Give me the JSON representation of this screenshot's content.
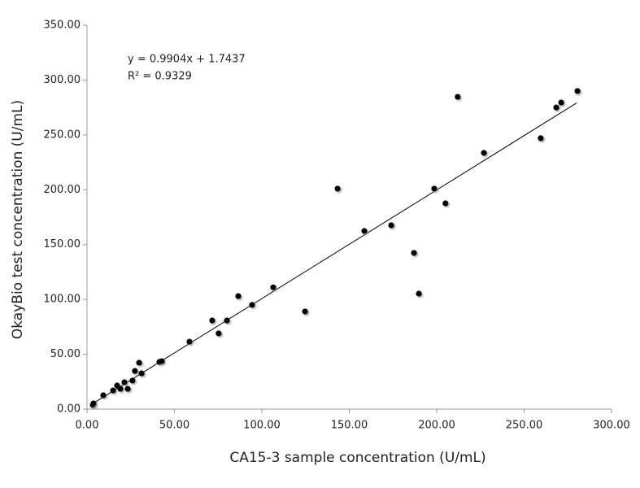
{
  "chart_data": {
    "type": "scatter",
    "xlabel": "CA15-3  sample concentration (U/mL)",
    "ylabel": "OkayBio test concentration (U/mL)",
    "annotations": [
      "y = 0.9904x + 1.7437",
      "R² = 0.9329"
    ],
    "trendline": {
      "slope": 0.9904,
      "intercept": 1.7437,
      "xlim": [
        3,
        280
      ]
    },
    "xlim": [
      0,
      300
    ],
    "ylim": [
      0,
      350
    ],
    "xticks": [
      {
        "value": 0,
        "label": "0.00"
      },
      {
        "value": 50,
        "label": "50.00"
      },
      {
        "value": 100,
        "label": "100.00"
      },
      {
        "value": 150,
        "label": "150.00"
      },
      {
        "value": 200,
        "label": "200.00"
      },
      {
        "value": 250,
        "label": "250.00"
      },
      {
        "value": 300,
        "label": "300.00"
      }
    ],
    "yticks": [
      {
        "value": 0,
        "label": "0.00"
      },
      {
        "value": 50,
        "label": "50.00"
      },
      {
        "value": 100,
        "label": "100.00"
      },
      {
        "value": 150,
        "label": "150.00"
      },
      {
        "value": 200,
        "label": "200.00"
      },
      {
        "value": 250,
        "label": "250.00"
      },
      {
        "value": 300,
        "label": "300.00"
      },
      {
        "value": 350,
        "label": "350.00"
      }
    ],
    "color": "#000000",
    "x": [
      3.3,
      3.7,
      9.3,
      14.9,
      17.2,
      19.1,
      21.4,
      23.3,
      26.0,
      27.4,
      29.8,
      31.2,
      41.4,
      42.8,
      58.6,
      71.6,
      75.3,
      80.0,
      86.5,
      94.4,
      106.5,
      124.7,
      143.3,
      158.6,
      174.0,
      187.0,
      189.8,
      198.6,
      205.0,
      212.0,
      227.0,
      259.5,
      268.4,
      271.2,
      280.5
    ],
    "values": [
      3.7,
      5.2,
      12.6,
      17.0,
      21.5,
      18.5,
      24.5,
      18.5,
      26.0,
      34.8,
      42.3,
      32.6,
      43.0,
      43.7,
      61.5,
      80.8,
      69.0,
      80.8,
      103.0,
      95.0,
      111.0,
      89.0,
      201.0,
      162.4,
      167.6,
      142.4,
      105.3,
      201.0,
      187.6,
      284.7,
      233.6,
      247.0,
      275.0,
      279.5,
      290.0
    ]
  }
}
